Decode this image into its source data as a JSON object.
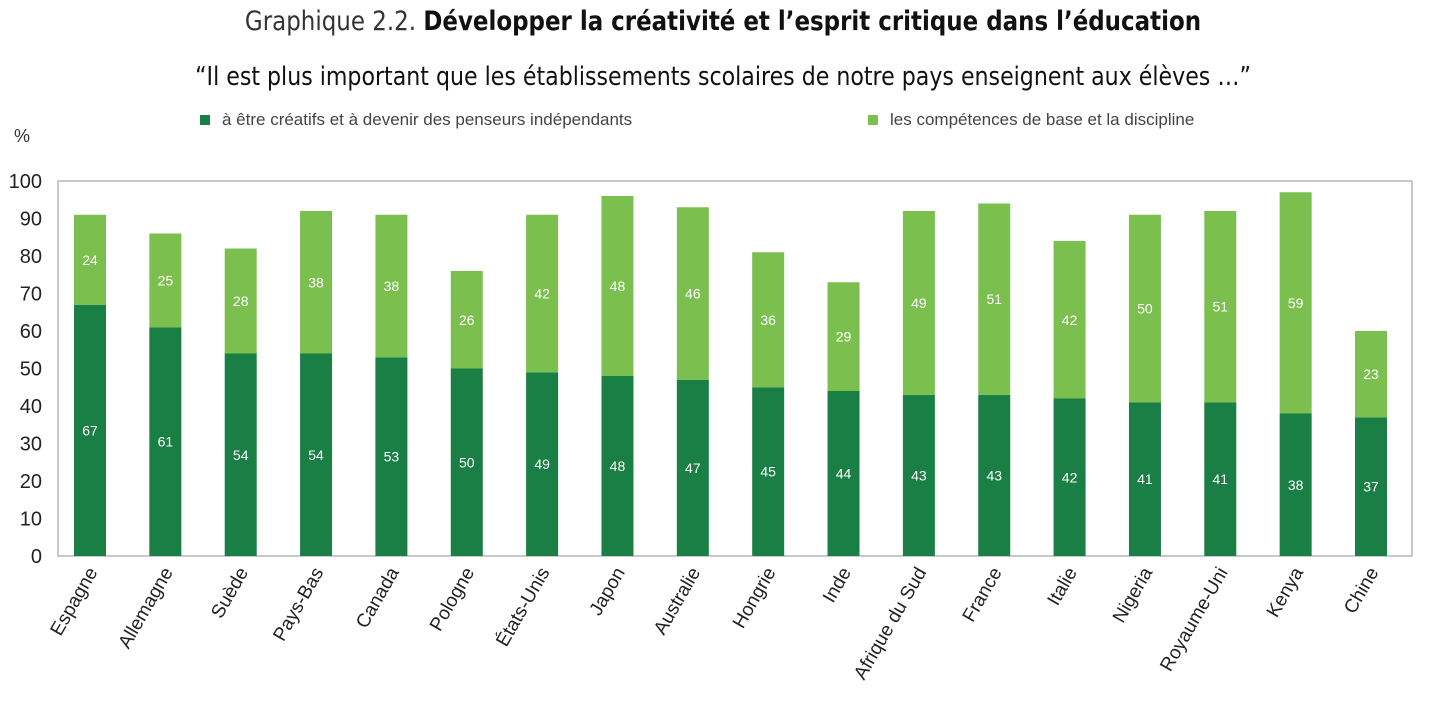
{
  "header": {
    "title_prefix": "Graphique 2.2.",
    "title_bold": "Développer la créativité et l’esprit critique dans l’éducation",
    "subtitle": "“Il est plus important que les établissements scolaires de notre pays enseignent aux élèves …”"
  },
  "chart_data": {
    "type": "bar",
    "stacked": true,
    "ylabel": "%",
    "ylim": [
      0,
      100
    ],
    "yticks": [
      0,
      10,
      20,
      30,
      40,
      50,
      60,
      70,
      80,
      90,
      100
    ],
    "grid": false,
    "legend_position": "top",
    "categories": [
      "Espagne",
      "Allemagne",
      "Suède",
      "Pays-Bas",
      "Canada",
      "Pologne",
      "États-Unis",
      "Japon",
      "Australie",
      "Hongrie",
      "Inde",
      "Afrique du Sud",
      "France",
      "Italie",
      "Nigeria",
      "Royaume-Uni",
      "Kenya",
      "Chine"
    ],
    "series": [
      {
        "name": "à être créatifs et à devenir des penseurs indépendants",
        "color": "#1a7f45",
        "values": [
          67,
          61,
          54,
          54,
          53,
          50,
          49,
          48,
          47,
          45,
          44,
          43,
          43,
          42,
          41,
          41,
          38,
          37
        ]
      },
      {
        "name": "les compétences de base et la discipline",
        "color": "#7bc04f",
        "values": [
          24,
          25,
          28,
          38,
          38,
          26,
          42,
          48,
          46,
          36,
          29,
          49,
          51,
          42,
          50,
          51,
          59,
          23
        ]
      }
    ]
  }
}
